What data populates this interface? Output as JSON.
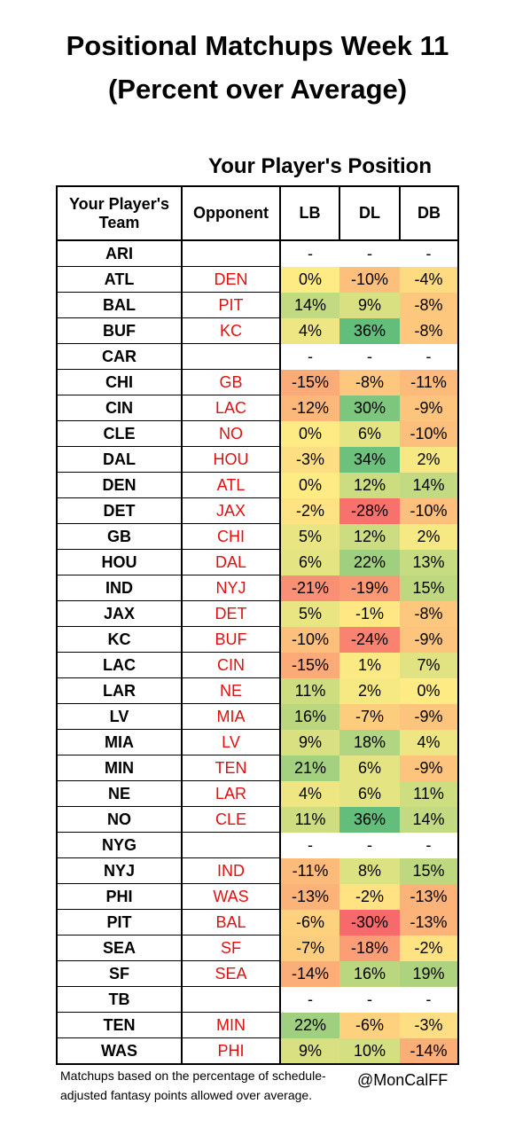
{
  "title_line1": "Positional Matchups Week 11",
  "title_line2": "(Percent over Average)",
  "footnote": "Matchups based on the percentage of schedule-adjusted fantasy points allowed over average.",
  "handle": "@MonCalFF",
  "colors": {
    "opponent_text": "#e01010",
    "scale_negative": "#f8696b",
    "scale_mid": "#ffeb84",
    "scale_positive": "#63be7b"
  },
  "chart_data": {
    "type": "heatmap",
    "title": "Your Player's Position",
    "row_header": "Your Player's Team",
    "opponent_header": "Opponent",
    "columns": [
      "LB",
      "DL",
      "DB"
    ],
    "value_format": "percent",
    "color_scale": {
      "min": -30,
      "mid": 0,
      "max": 36
    },
    "rows": [
      {
        "team": "ARI",
        "opponent": "",
        "values": [
          "-",
          "-",
          "-"
        ]
      },
      {
        "team": "ATL",
        "opponent": "DEN",
        "values": [
          "0%",
          "-10%",
          "-4%"
        ]
      },
      {
        "team": "BAL",
        "opponent": "PIT",
        "values": [
          "14%",
          "9%",
          "-8%"
        ]
      },
      {
        "team": "BUF",
        "opponent": "KC",
        "values": [
          "4%",
          "36%",
          "-8%"
        ]
      },
      {
        "team": "CAR",
        "opponent": "",
        "values": [
          "-",
          "-",
          "-"
        ]
      },
      {
        "team": "CHI",
        "opponent": "GB",
        "values": [
          "-15%",
          "-8%",
          "-11%"
        ]
      },
      {
        "team": "CIN",
        "opponent": "LAC",
        "values": [
          "-12%",
          "30%",
          "-9%"
        ]
      },
      {
        "team": "CLE",
        "opponent": "NO",
        "values": [
          "0%",
          "6%",
          "-10%"
        ]
      },
      {
        "team": "DAL",
        "opponent": "HOU",
        "values": [
          "-3%",
          "34%",
          "2%"
        ]
      },
      {
        "team": "DEN",
        "opponent": "ATL",
        "values": [
          "0%",
          "12%",
          "14%"
        ]
      },
      {
        "team": "DET",
        "opponent": "JAX",
        "values": [
          "-2%",
          "-28%",
          "-10%"
        ]
      },
      {
        "team": "GB",
        "opponent": "CHI",
        "values": [
          "5%",
          "12%",
          "2%"
        ]
      },
      {
        "team": "HOU",
        "opponent": "DAL",
        "values": [
          "6%",
          "22%",
          "13%"
        ]
      },
      {
        "team": "IND",
        "opponent": "NYJ",
        "values": [
          "-21%",
          "-19%",
          "15%"
        ]
      },
      {
        "team": "JAX",
        "opponent": "DET",
        "values": [
          "5%",
          "-1%",
          "-8%"
        ]
      },
      {
        "team": "KC",
        "opponent": "BUF",
        "values": [
          "-10%",
          "-24%",
          "-9%"
        ]
      },
      {
        "team": "LAC",
        "opponent": "CIN",
        "values": [
          "-15%",
          "1%",
          "7%"
        ]
      },
      {
        "team": "LAR",
        "opponent": "NE",
        "values": [
          "11%",
          "2%",
          "0%"
        ]
      },
      {
        "team": "LV",
        "opponent": "MIA",
        "values": [
          "16%",
          "-7%",
          "-9%"
        ]
      },
      {
        "team": "MIA",
        "opponent": "LV",
        "values": [
          "9%",
          "18%",
          "4%"
        ]
      },
      {
        "team": "MIN",
        "opponent": "TEN",
        "values": [
          "21%",
          "6%",
          "-9%"
        ]
      },
      {
        "team": "NE",
        "opponent": "LAR",
        "values": [
          "4%",
          "6%",
          "11%"
        ]
      },
      {
        "team": "NO",
        "opponent": "CLE",
        "values": [
          "11%",
          "36%",
          "14%"
        ]
      },
      {
        "team": "NYG",
        "opponent": "",
        "values": [
          "-",
          "-",
          "-"
        ]
      },
      {
        "team": "NYJ",
        "opponent": "IND",
        "values": [
          "-11%",
          "8%",
          "15%"
        ]
      },
      {
        "team": "PHI",
        "opponent": "WAS",
        "values": [
          "-13%",
          "-2%",
          "-13%"
        ]
      },
      {
        "team": "PIT",
        "opponent": "BAL",
        "values": [
          "-6%",
          "-30%",
          "-13%"
        ]
      },
      {
        "team": "SEA",
        "opponent": "SF",
        "values": [
          "-7%",
          "-18%",
          "-2%"
        ]
      },
      {
        "team": "SF",
        "opponent": "SEA",
        "values": [
          "-14%",
          "16%",
          "19%"
        ]
      },
      {
        "team": "TB",
        "opponent": "",
        "values": [
          "-",
          "-",
          "-"
        ]
      },
      {
        "team": "TEN",
        "opponent": "MIN",
        "values": [
          "22%",
          "-6%",
          "-3%"
        ]
      },
      {
        "team": "WAS",
        "opponent": "PHI",
        "values": [
          "9%",
          "10%",
          "-14%"
        ]
      }
    ]
  }
}
